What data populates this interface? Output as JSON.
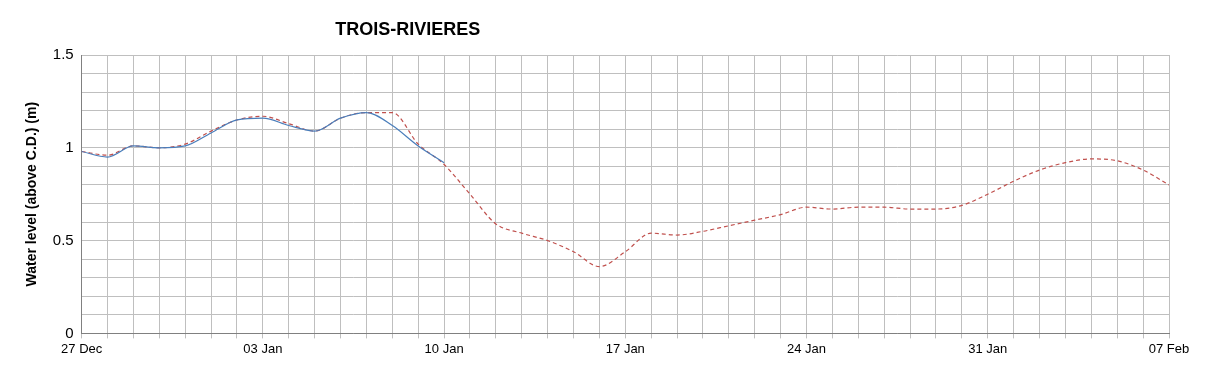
{
  "chart_data": {
    "type": "line",
    "title": "TROIS-RIVIERES",
    "y_label": "Water level (above C.D.) (m)",
    "categories": [
      "27 Dec",
      null,
      null,
      null,
      null,
      null,
      null,
      "03 Jan",
      null,
      null,
      null,
      null,
      null,
      null,
      "10 Jan",
      null,
      null,
      null,
      null,
      null,
      null,
      "17 Jan",
      null,
      null,
      null,
      null,
      null,
      null,
      "24 Jan",
      null,
      null,
      null,
      null,
      null,
      null,
      "31 Jan",
      null,
      null,
      null,
      null,
      null,
      null,
      "07 Feb"
    ],
    "series": [
      {
        "color": "#4a7ebb",
        "line_style": "solid",
        "values": [
          0.98,
          0.95,
          1.01,
          1.0,
          1.01,
          1.08,
          1.15,
          1.16,
          1.12,
          1.09,
          1.16,
          1.19,
          1.12,
          1.01,
          0.92,
          null,
          null,
          null,
          null,
          null,
          null,
          null,
          null,
          null,
          null,
          null,
          null,
          null,
          null,
          null,
          null,
          null,
          null,
          null,
          null,
          null,
          null,
          null,
          null,
          null,
          null,
          null,
          null
        ]
      },
      {
        "color": "#c0504d",
        "line_style": "dashed",
        "values": [
          0.98,
          0.96,
          1.01,
          1.0,
          1.02,
          1.09,
          1.15,
          1.17,
          1.13,
          1.09,
          1.16,
          1.19,
          1.19,
          1.02,
          0.91,
          0.75,
          0.59,
          0.54,
          0.5,
          0.44,
          0.36,
          0.44,
          0.54,
          0.53,
          0.55,
          0.58,
          0.61,
          0.64,
          0.68,
          0.67,
          0.68,
          0.68,
          0.67,
          0.67,
          0.69,
          0.75,
          0.82,
          0.88,
          0.92,
          0.94,
          0.93,
          0.88,
          0.8
        ]
      }
    ],
    "ylim": [
      0,
      1.5
    ],
    "yticks": [
      0,
      0.5,
      1,
      1.5
    ],
    "grid": true
  }
}
